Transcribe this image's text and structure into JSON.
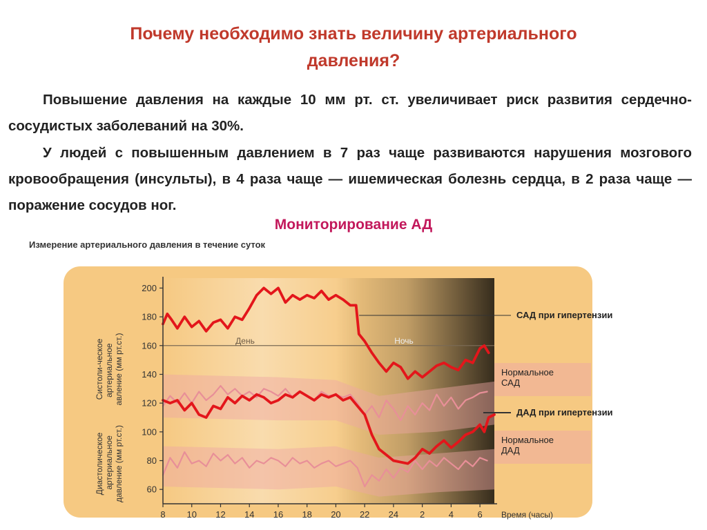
{
  "slide": {
    "title_line1": "Почему необходимо знать величину артериального",
    "title_line2": "давления?",
    "paragraph1": "Повышение давления на каждые 10 мм рт. ст. увеличивает риск развития сердечно-сосудистых заболеваний на 30%.",
    "paragraph2": "У людей с повышенным давлением в 7 раз чаще развиваются нарушения мозгового кровообращения (инсульты), в 4 раза чаще — ишемическая болезнь сердца, в 2 раза чаще — поражение сосудов ног.",
    "subtitle": "Мониторирование АД"
  },
  "colors": {
    "title": "#c0392b",
    "subtitle": "#c2185b",
    "panel": "#f6c982",
    "hypertension_line": "#e3161b",
    "normal_line": "#e88f98",
    "normal_band": "#eea7a4",
    "night_shade": "#2b2b2b"
  },
  "chart_data": {
    "type": "line",
    "title": "Измерение артериального давления в течение суток",
    "xlabel": "Время (часы)",
    "ylabel_systolic": "Систоли-ческое артериальное давление (мм рт.ст.)",
    "ylabel_diastolic": "Диастолическое артериальное давление (мм рт.ст.)",
    "x_tick_labels": [
      "8",
      "10",
      "12",
      "14",
      "16",
      "18",
      "20",
      "22",
      "24",
      "2",
      "4",
      "6"
    ],
    "y_ticks": [
      60,
      80,
      100,
      120,
      140,
      160,
      180,
      200
    ],
    "ylim": [
      50,
      205
    ],
    "xlim_hours_elapsed": [
      0,
      23
    ],
    "period_labels": {
      "day": "День",
      "night": "Ночь"
    },
    "reference_line": 160,
    "series": [
      {
        "name": "САД при гипертензии",
        "points": [
          [
            0,
            175
          ],
          [
            0.3,
            182
          ],
          [
            0.6,
            178
          ],
          [
            1,
            172
          ],
          [
            1.5,
            180
          ],
          [
            2,
            173
          ],
          [
            2.5,
            177
          ],
          [
            3,
            170
          ],
          [
            3.5,
            176
          ],
          [
            4,
            178
          ],
          [
            4.5,
            172
          ],
          [
            5,
            180
          ],
          [
            5.5,
            178
          ],
          [
            6,
            186
          ],
          [
            6.5,
            195
          ],
          [
            7,
            200
          ],
          [
            7.5,
            196
          ],
          [
            8,
            200
          ],
          [
            8.5,
            190
          ],
          [
            9,
            195
          ],
          [
            9.5,
            192
          ],
          [
            10,
            195
          ],
          [
            10.5,
            193
          ],
          [
            11,
            198
          ],
          [
            11.5,
            192
          ],
          [
            12,
            195
          ],
          [
            12.5,
            192
          ],
          [
            13,
            188
          ],
          [
            13.4,
            188
          ],
          [
            13.6,
            168
          ],
          [
            14,
            163
          ],
          [
            14.5,
            155
          ],
          [
            15,
            148
          ],
          [
            15.5,
            142
          ],
          [
            16,
            148
          ],
          [
            16.5,
            145
          ],
          [
            17,
            137
          ],
          [
            17.5,
            142
          ],
          [
            18,
            138
          ],
          [
            18.5,
            142
          ],
          [
            19,
            146
          ],
          [
            19.5,
            148
          ],
          [
            20,
            145
          ],
          [
            20.5,
            143
          ],
          [
            21,
            150
          ],
          [
            21.5,
            148
          ],
          [
            22,
            158
          ],
          [
            22.3,
            160
          ],
          [
            22.6,
            155
          ]
        ]
      },
      {
        "name": "Нормальное САД",
        "points": [
          [
            0,
            118
          ],
          [
            0.5,
            125
          ],
          [
            1,
            120
          ],
          [
            1.5,
            127
          ],
          [
            2,
            120
          ],
          [
            2.5,
            128
          ],
          [
            3,
            122
          ],
          [
            3.5,
            126
          ],
          [
            4,
            132
          ],
          [
            4.5,
            126
          ],
          [
            5,
            130
          ],
          [
            5.5,
            125
          ],
          [
            6,
            128
          ],
          [
            6.5,
            124
          ],
          [
            7,
            130
          ],
          [
            7.5,
            128
          ],
          [
            8,
            125
          ],
          [
            8.5,
            130
          ],
          [
            9,
            124
          ],
          [
            9.5,
            128
          ],
          [
            10,
            125
          ],
          [
            10.5,
            122
          ],
          [
            11,
            128
          ],
          [
            11.5,
            125
          ],
          [
            12,
            126
          ],
          [
            12.5,
            124
          ],
          [
            13,
            126
          ],
          [
            13.5,
            120
          ],
          [
            14,
            112
          ],
          [
            14.5,
            118
          ],
          [
            15,
            110
          ],
          [
            15.5,
            122
          ],
          [
            16,
            116
          ],
          [
            16.5,
            108
          ],
          [
            17,
            118
          ],
          [
            17.5,
            112
          ],
          [
            18,
            120
          ],
          [
            18.5,
            115
          ],
          [
            19,
            126
          ],
          [
            19.5,
            118
          ],
          [
            20,
            124
          ],
          [
            20.5,
            116
          ],
          [
            21,
            122
          ],
          [
            21.5,
            124
          ],
          [
            22,
            127
          ],
          [
            22.5,
            128
          ]
        ]
      },
      {
        "name": "ДАД при гипертензии",
        "points": [
          [
            0,
            122
          ],
          [
            0.5,
            120
          ],
          [
            1,
            122
          ],
          [
            1.5,
            115
          ],
          [
            2,
            120
          ],
          [
            2.5,
            112
          ],
          [
            3,
            110
          ],
          [
            3.5,
            118
          ],
          [
            4,
            116
          ],
          [
            4.5,
            124
          ],
          [
            5,
            120
          ],
          [
            5.5,
            125
          ],
          [
            6,
            122
          ],
          [
            6.5,
            126
          ],
          [
            7,
            124
          ],
          [
            7.5,
            120
          ],
          [
            8,
            122
          ],
          [
            8.5,
            126
          ],
          [
            9,
            124
          ],
          [
            9.5,
            128
          ],
          [
            10,
            125
          ],
          [
            10.5,
            122
          ],
          [
            11,
            126
          ],
          [
            11.5,
            124
          ],
          [
            12,
            126
          ],
          [
            12.5,
            122
          ],
          [
            13,
            124
          ],
          [
            13.5,
            118
          ],
          [
            14,
            112
          ],
          [
            14.5,
            98
          ],
          [
            15,
            88
          ],
          [
            15.5,
            84
          ],
          [
            16,
            80
          ],
          [
            16.5,
            79
          ],
          [
            17,
            78
          ],
          [
            17.5,
            82
          ],
          [
            18,
            88
          ],
          [
            18.5,
            85
          ],
          [
            19,
            90
          ],
          [
            19.5,
            94
          ],
          [
            20,
            89
          ],
          [
            20.5,
            93
          ],
          [
            21,
            98
          ],
          [
            21.5,
            100
          ],
          [
            22,
            105
          ],
          [
            22.3,
            100
          ],
          [
            22.6,
            110
          ],
          [
            23,
            112
          ]
        ]
      },
      {
        "name": "Нормальное ДАД",
        "points": [
          [
            0,
            70
          ],
          [
            0.5,
            82
          ],
          [
            1,
            75
          ],
          [
            1.5,
            86
          ],
          [
            2,
            78
          ],
          [
            2.5,
            80
          ],
          [
            3,
            76
          ],
          [
            3.5,
            85
          ],
          [
            4,
            80
          ],
          [
            4.5,
            84
          ],
          [
            5,
            78
          ],
          [
            5.5,
            82
          ],
          [
            6,
            75
          ],
          [
            6.5,
            80
          ],
          [
            7,
            78
          ],
          [
            7.5,
            82
          ],
          [
            8,
            80
          ],
          [
            8.5,
            76
          ],
          [
            9,
            82
          ],
          [
            9.5,
            78
          ],
          [
            10,
            80
          ],
          [
            10.5,
            75
          ],
          [
            11,
            78
          ],
          [
            11.5,
            80
          ],
          [
            12,
            76
          ],
          [
            12.5,
            78
          ],
          [
            13,
            80
          ],
          [
            13.5,
            75
          ],
          [
            14,
            62
          ],
          [
            14.5,
            70
          ],
          [
            15,
            66
          ],
          [
            15.5,
            74
          ],
          [
            16,
            68
          ],
          [
            16.5,
            75
          ],
          [
            17,
            72
          ],
          [
            17.5,
            80
          ],
          [
            18,
            74
          ],
          [
            18.5,
            80
          ],
          [
            19,
            76
          ],
          [
            19.5,
            82
          ],
          [
            20,
            78
          ],
          [
            20.5,
            74
          ],
          [
            21,
            80
          ],
          [
            21.5,
            76
          ],
          [
            22,
            82
          ],
          [
            22.5,
            80
          ]
        ]
      }
    ],
    "normal_bands": [
      {
        "name": "Нормальное САД",
        "upper": [
          [
            0,
            140
          ],
          [
            8,
            138
          ],
          [
            12,
            136
          ],
          [
            15,
            125
          ],
          [
            19,
            130
          ],
          [
            23,
            135
          ]
        ],
        "lower": [
          [
            0,
            110
          ],
          [
            8,
            108
          ],
          [
            12,
            108
          ],
          [
            15,
            98
          ],
          [
            19,
            100
          ],
          [
            23,
            105
          ]
        ]
      },
      {
        "name": "Нормальное ДАД",
        "upper": [
          [
            0,
            90
          ],
          [
            8,
            88
          ],
          [
            12,
            90
          ],
          [
            15,
            82
          ],
          [
            19,
            85
          ],
          [
            23,
            88
          ]
        ],
        "lower": [
          [
            0,
            62
          ],
          [
            8,
            60
          ],
          [
            12,
            62
          ],
          [
            15,
            55
          ],
          [
            19,
            58
          ],
          [
            23,
            60
          ]
        ]
      }
    ]
  }
}
